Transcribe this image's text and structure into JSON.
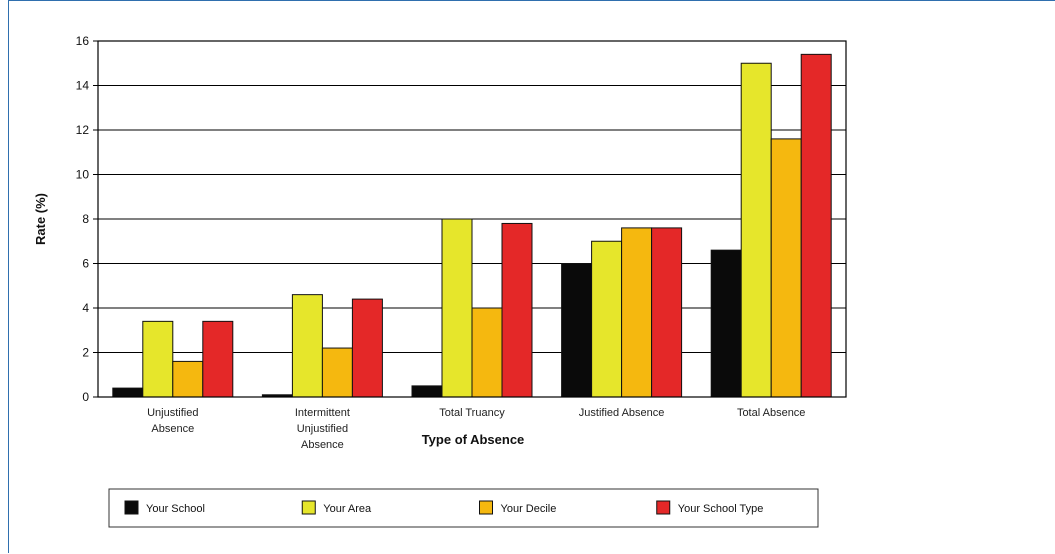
{
  "chart_data": {
    "type": "bar",
    "title": "",
    "xlabel": "Type of Absence",
    "ylabel": "Rate (%)",
    "ylim": [
      0,
      16
    ],
    "yticks": [
      0,
      2,
      4,
      6,
      8,
      10,
      12,
      14,
      16
    ],
    "grid": true,
    "legend_position": "bottom",
    "categories": [
      [
        "Unjustified",
        "Absence"
      ],
      [
        "Intermittent",
        "Unjustified",
        "Absence"
      ],
      [
        "Total Truancy"
      ],
      [
        "Justified Absence"
      ],
      [
        "Total Absence"
      ]
    ],
    "series": [
      {
        "name": "Your School",
        "color": "#0a0a0a",
        "values": [
          0.4,
          0.1,
          0.5,
          6.0,
          6.6
        ]
      },
      {
        "name": "Your Area",
        "color": "#e6e62b",
        "values": [
          3.4,
          4.6,
          8.0,
          7.0,
          15.0
        ]
      },
      {
        "name": "Your Decile",
        "color": "#f5b80f",
        "values": [
          1.6,
          2.2,
          4.0,
          7.6,
          11.6
        ]
      },
      {
        "name": "Your School Type",
        "color": "#e42828",
        "values": [
          3.4,
          4.4,
          7.8,
          7.6,
          15.4
        ]
      }
    ]
  }
}
